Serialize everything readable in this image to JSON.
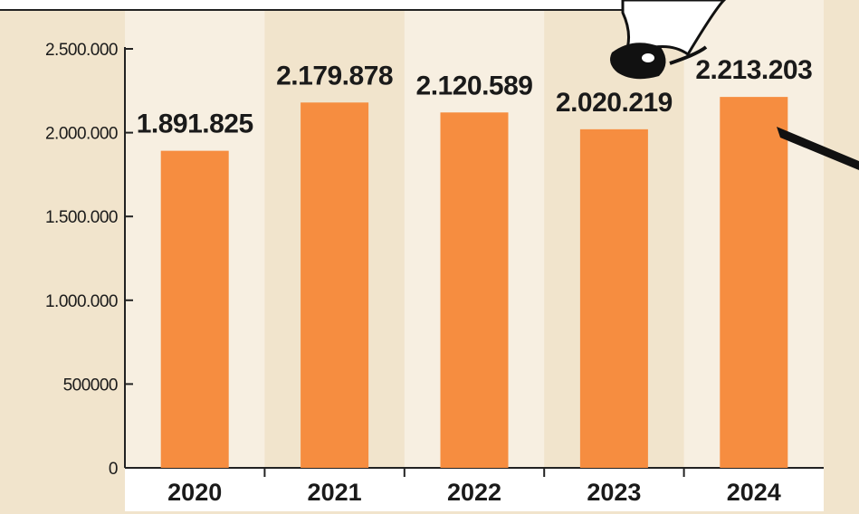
{
  "chart_data": {
    "type": "bar",
    "title": "",
    "xlabel": "",
    "ylabel": "",
    "categories": [
      "2020",
      "2021",
      "2022",
      "2023",
      "2024"
    ],
    "values": [
      1891825,
      2179878,
      2120589,
      2020219,
      2213203
    ],
    "data_labels": [
      "1.891.825",
      "2.179.878",
      "2.120.589",
      "2.020.219",
      "2.213.203"
    ],
    "yticks": [
      {
        "value": 0,
        "label": "0"
      },
      {
        "value": 500000,
        "label": "500000"
      },
      {
        "value": 1000000,
        "label": "1.000.000"
      },
      {
        "value": 1500000,
        "label": "1.500.000"
      },
      {
        "value": 2000000,
        "label": "2.000.000"
      },
      {
        "value": 2500000,
        "label": "2.500.000"
      }
    ],
    "ylim": [
      0,
      2500000
    ],
    "grid": false,
    "legend": "none",
    "colors": {
      "bar": "#F68D40",
      "panel_background": "#F1E4CC",
      "alternate_band": "#F7EFE1",
      "axis": "#222222",
      "text": "#1a1a1a",
      "x_label_strip": "#FFFFFF",
      "decoration": "#111111"
    }
  }
}
